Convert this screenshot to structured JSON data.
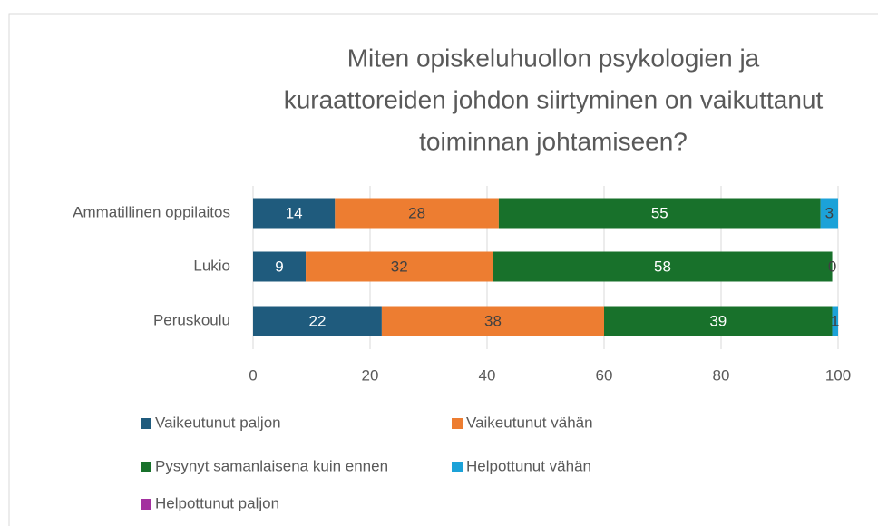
{
  "chart_data": {
    "type": "stacked_barh",
    "title": [
      "Miten opiskeluhuollon psykologien ja",
      "kuraattoreiden johdon siirtyminen on vaikuttanut",
      "toiminnan johtamiseen?"
    ],
    "categories": [
      "Ammatillinen oppilaitos",
      "Lukio",
      "Peruskoulu"
    ],
    "series": [
      {
        "name": "Vaikeutunut paljon",
        "color": "#1f5b7d",
        "values": [
          14,
          9,
          22
        ]
      },
      {
        "name": "Vaikeutunut vähän",
        "color": "#ed7d31",
        "values": [
          28,
          32,
          38
        ]
      },
      {
        "name": "Pysynyt samanlaisena kuin ennen",
        "color": "#18712b",
        "values": [
          55,
          58,
          39
        ]
      },
      {
        "name": "Helpottunut vähän",
        "color": "#1ca2d8",
        "values": [
          3,
          0,
          1
        ]
      },
      {
        "name": "Helpottunut paljon",
        "color": "#a3309f",
        "values": [
          0,
          0,
          0
        ],
        "data_labels": false
      }
    ],
    "xlim": [
      0,
      100
    ],
    "xticks": [
      0,
      20,
      40,
      60,
      80,
      100
    ],
    "grid": true
  }
}
